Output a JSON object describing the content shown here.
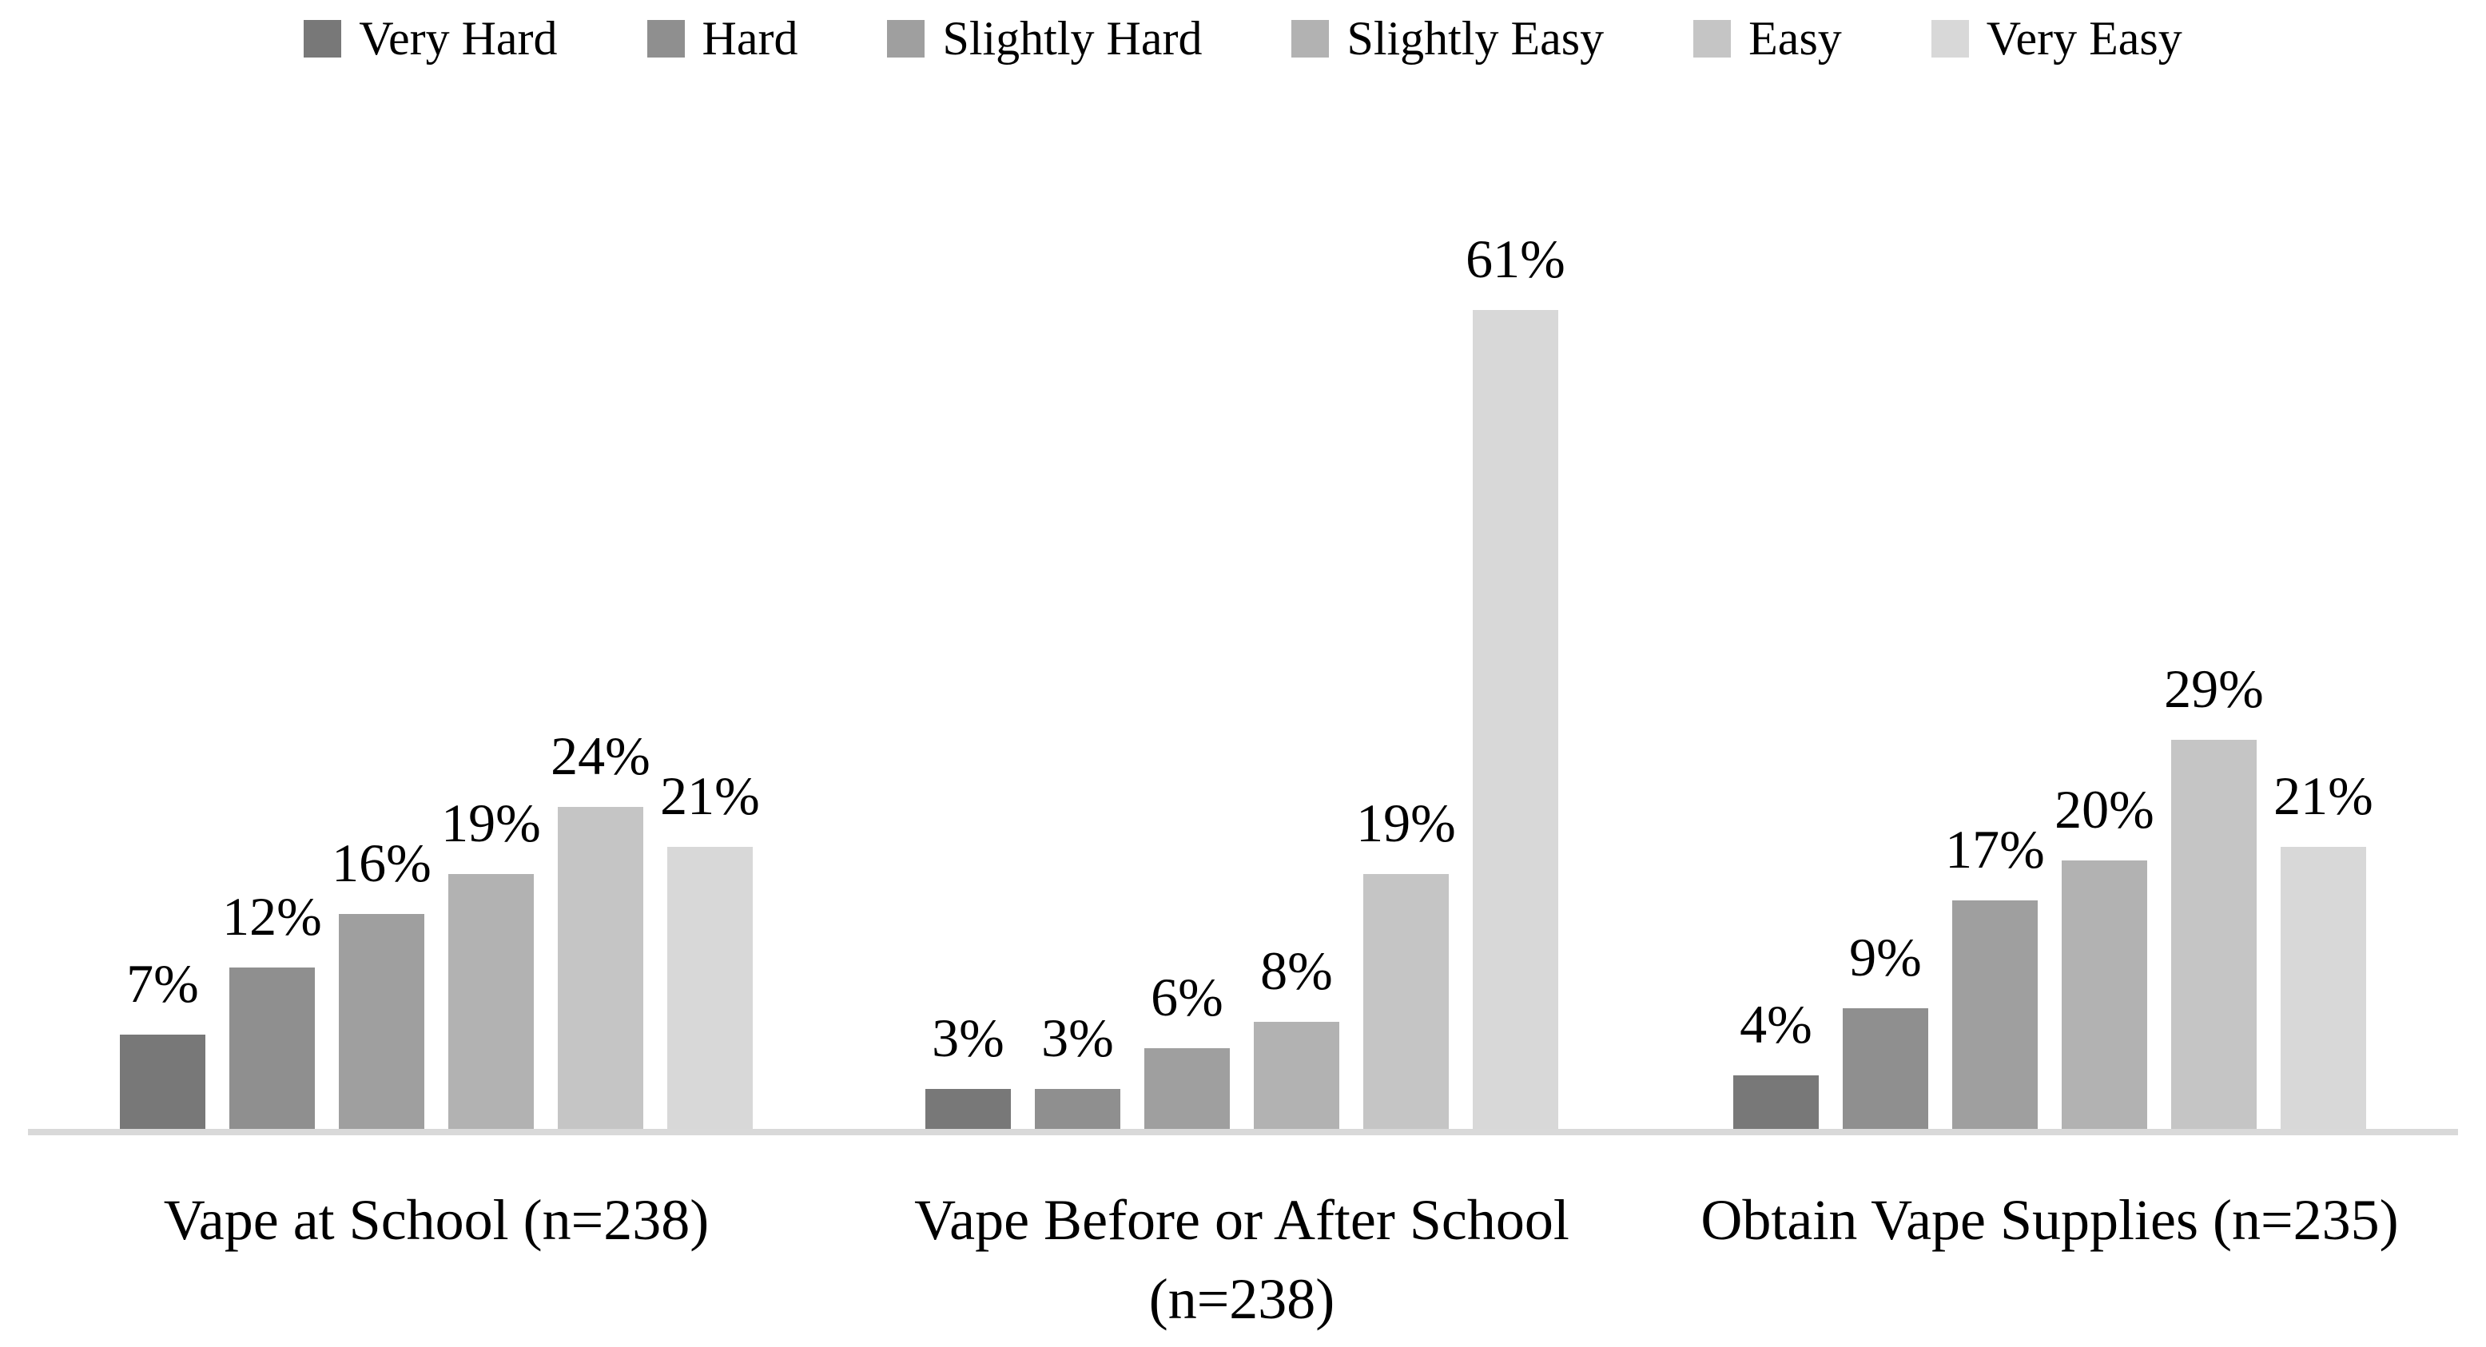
{
  "chart_data": {
    "type": "bar",
    "grouping": "grouped",
    "categories": [
      "Vape at School (n=238)",
      "Vape Before or After School (n=238)",
      "Obtain Vape Supplies (n=235)"
    ],
    "category_label_lines": [
      [
        "Vape at School (n=238)"
      ],
      [
        "Vape Before or After School",
        "(n=238)"
      ],
      [
        "Obtain Vape Supplies (n=235)"
      ]
    ],
    "series": [
      {
        "name": "Very Hard",
        "color": "#787878",
        "values": [
          7,
          3,
          4
        ]
      },
      {
        "name": "Hard",
        "color": "#8f8f8f",
        "values": [
          12,
          3,
          9
        ]
      },
      {
        "name": "Slightly Hard",
        "color": "#9f9f9f",
        "values": [
          16,
          6,
          17
        ]
      },
      {
        "name": "Slightly Easy",
        "color": "#b2b2b2",
        "values": [
          19,
          8,
          20
        ]
      },
      {
        "name": "Easy",
        "color": "#c5c5c5",
        "values": [
          24,
          19,
          29
        ]
      },
      {
        "name": "Very Easy",
        "color": "#d8d8d8",
        "values": [
          21,
          61,
          21
        ]
      }
    ],
    "data_labels": {
      "visible": true,
      "suffix": "%",
      "position": "outside-end"
    },
    "legend": {
      "position": "top",
      "entries": [
        "Very Hard",
        "Hard",
        "Slightly Hard",
        "Slightly Easy",
        "Easy",
        "Very Easy"
      ]
    },
    "axes": {
      "y_axis_visible": false,
      "x_axis_visible": false,
      "gridlines": false,
      "baseline_color": "#d9d9d9",
      "ylim": [
        0,
        65
      ]
    },
    "background_color": "#ffffff",
    "text_color": "#000000"
  }
}
